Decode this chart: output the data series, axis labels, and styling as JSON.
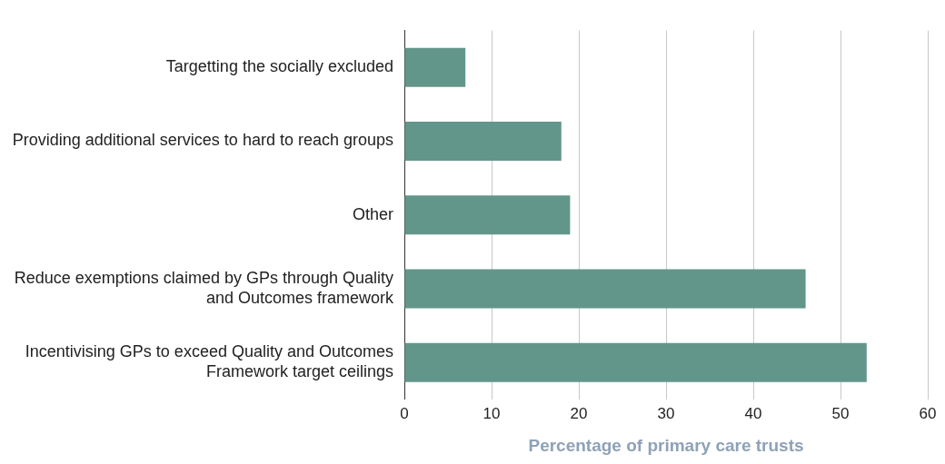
{
  "chart_data": {
    "type": "bar",
    "orientation": "horizontal",
    "xlabel": "Percentage of primary care trusts",
    "categories": [
      "Targetting the socially excluded",
      "Providing additional services to hard to reach groups",
      "Other",
      "Reduce exemptions claimed by GPs through Quality and Outcomes framework",
      "Incentivising GPs to exceed Quality and Outcomes Framework target ceilings"
    ],
    "values": [
      7,
      18,
      19,
      46,
      53
    ],
    "color": "#62968b",
    "xlim": [
      0,
      60
    ],
    "xticks": [
      0,
      10,
      20,
      30,
      40,
      50,
      60
    ],
    "grid": "x",
    "legend": false
  }
}
